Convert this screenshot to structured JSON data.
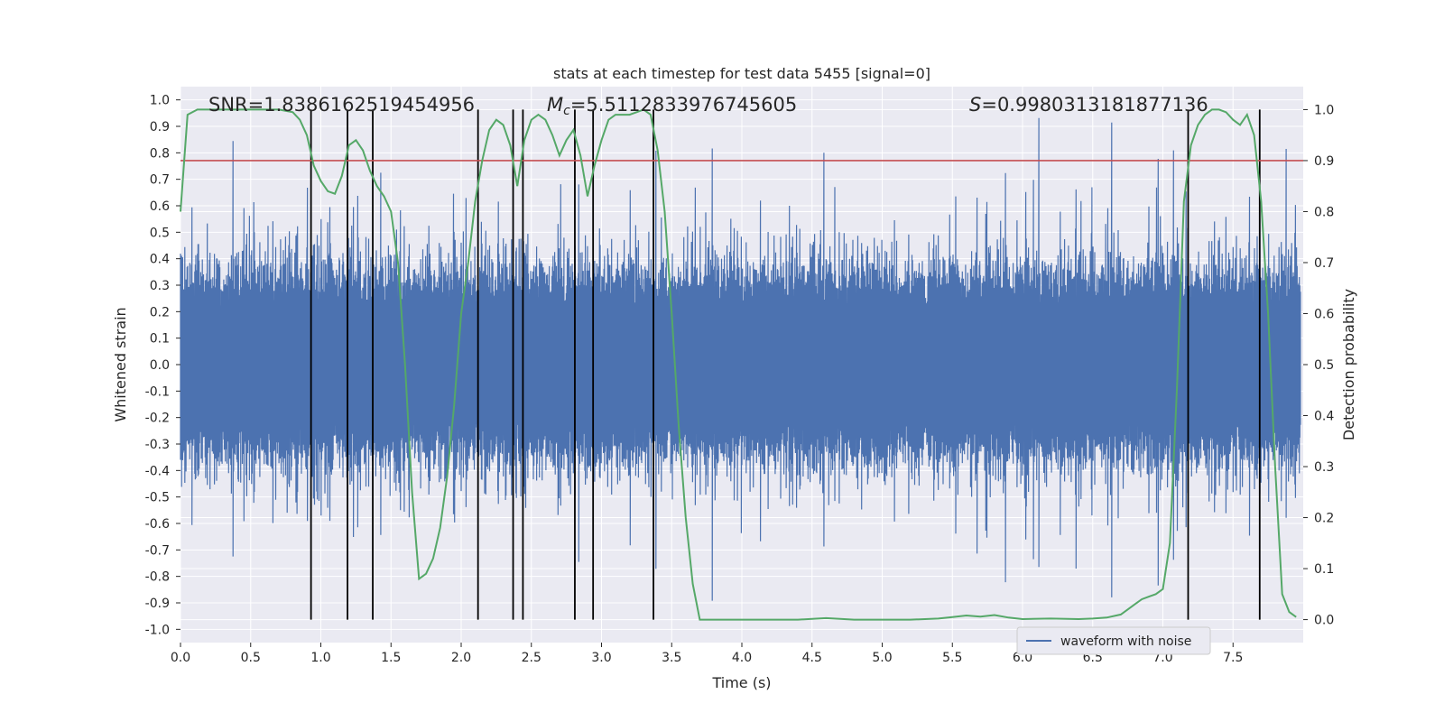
{
  "chart_data": {
    "type": "line",
    "title": "stats at each timestep for test data 5455 [signal=0]",
    "xlabel": "Time (s)",
    "ylabel": "Whitened strain",
    "y2label": "Detection probability",
    "xlim": [
      0.0,
      8.0
    ],
    "ylim": [
      -1.05,
      1.05
    ],
    "y2lim": [
      -0.045,
      1.045
    ],
    "xticks": [
      "0.0",
      "0.5",
      "1.0",
      "1.5",
      "2.0",
      "2.5",
      "3.0",
      "3.5",
      "4.0",
      "4.5",
      "5.0",
      "5.5",
      "6.0",
      "6.5",
      "7.0",
      "7.5"
    ],
    "yticks": [
      "1.0",
      "0.9",
      "0.8",
      "0.7",
      "0.6",
      "0.5",
      "0.4",
      "0.3",
      "0.2",
      "0.1",
      "0.0",
      "-0.1",
      "-0.2",
      "-0.3",
      "-0.4",
      "-0.5",
      "-0.6",
      "-0.7",
      "-0.8",
      "-0.9",
      "-1.0"
    ],
    "y2ticks": [
      "1.0",
      "0.9",
      "0.8",
      "0.7",
      "0.6",
      "0.5",
      "0.4",
      "0.3",
      "0.2",
      "0.1",
      "0.0"
    ],
    "grid": true,
    "legend": {
      "placement": "lower-right",
      "entries": [
        "waveform with noise"
      ]
    },
    "annotations": {
      "snr": "SNR=1.8386162519454956",
      "mc_symbol": "M",
      "mc_sub": "c",
      "mc_value": "=5.5112833976745605",
      "s_symbol": "S",
      "s_value": "=0.9980313181877136"
    },
    "threshold": 0.9,
    "vertical_lines_x": [
      0.93,
      1.19,
      1.37,
      2.12,
      2.37,
      2.44,
      2.81,
      2.94,
      3.37,
      7.18,
      7.69
    ],
    "waveform_envelope": {
      "name": "waveform with noise",
      "typical_amplitude": 0.42,
      "peak_amplitude": 1.0,
      "samples": 2048
    },
    "detection_probability": {
      "x": [
        0.0,
        0.05,
        0.12,
        0.2,
        0.3,
        0.4,
        0.5,
        0.6,
        0.7,
        0.8,
        0.85,
        0.9,
        0.95,
        1.0,
        1.05,
        1.1,
        1.15,
        1.2,
        1.25,
        1.3,
        1.35,
        1.4,
        1.45,
        1.5,
        1.55,
        1.6,
        1.65,
        1.7,
        1.75,
        1.8,
        1.85,
        1.9,
        1.95,
        2.0,
        2.05,
        2.1,
        2.15,
        2.2,
        2.25,
        2.3,
        2.35,
        2.4,
        2.45,
        2.5,
        2.55,
        2.6,
        2.65,
        2.7,
        2.75,
        2.8,
        2.85,
        2.9,
        2.95,
        3.0,
        3.05,
        3.1,
        3.15,
        3.2,
        3.25,
        3.3,
        3.35,
        3.4,
        3.45,
        3.5,
        3.55,
        3.6,
        3.65,
        3.7,
        3.75,
        3.8,
        4.0,
        4.2,
        4.4,
        4.6,
        4.8,
        5.0,
        5.2,
        5.4,
        5.5,
        5.6,
        5.7,
        5.8,
        5.9,
        6.0,
        6.2,
        6.4,
        6.5,
        6.6,
        6.7,
        6.75,
        6.8,
        6.85,
        6.9,
        6.95,
        7.0,
        7.05,
        7.1,
        7.15,
        7.2,
        7.25,
        7.3,
        7.35,
        7.4,
        7.45,
        7.5,
        7.55,
        7.6,
        7.65,
        7.7,
        7.75,
        7.8,
        7.85,
        7.9,
        7.95
      ],
      "y": [
        0.8,
        0.99,
        1.0,
        1.0,
        1.0,
        1.0,
        1.0,
        1.0,
        1.0,
        0.995,
        0.98,
        0.95,
        0.89,
        0.86,
        0.84,
        0.835,
        0.87,
        0.93,
        0.94,
        0.92,
        0.88,
        0.85,
        0.83,
        0.8,
        0.7,
        0.5,
        0.25,
        0.08,
        0.09,
        0.12,
        0.18,
        0.28,
        0.42,
        0.6,
        0.7,
        0.82,
        0.9,
        0.96,
        0.98,
        0.97,
        0.93,
        0.85,
        0.94,
        0.98,
        0.99,
        0.98,
        0.95,
        0.91,
        0.94,
        0.96,
        0.91,
        0.83,
        0.89,
        0.94,
        0.98,
        0.99,
        0.99,
        0.99,
        0.995,
        1.0,
        0.99,
        0.92,
        0.8,
        0.6,
        0.38,
        0.2,
        0.07,
        0.0,
        0.0,
        0.0,
        0.0,
        0.0,
        0.0,
        0.003,
        0.0,
        0.0,
        0.0,
        0.002,
        0.005,
        0.008,
        0.006,
        0.009,
        0.004,
        0.001,
        0.002,
        0.001,
        0.002,
        0.004,
        0.01,
        0.02,
        0.03,
        0.04,
        0.045,
        0.05,
        0.06,
        0.15,
        0.45,
        0.82,
        0.93,
        0.97,
        0.99,
        1.0,
        1.0,
        0.995,
        0.98,
        0.97,
        0.99,
        0.95,
        0.82,
        0.6,
        0.3,
        0.05,
        0.015,
        0.005
      ]
    },
    "colors": {
      "waveform": "#4c72b0",
      "probability": "#55a868",
      "threshold": "#c44e52",
      "vlines": "#000000",
      "plot_bg": "#eaeaf2",
      "grid": "#ffffff"
    }
  }
}
